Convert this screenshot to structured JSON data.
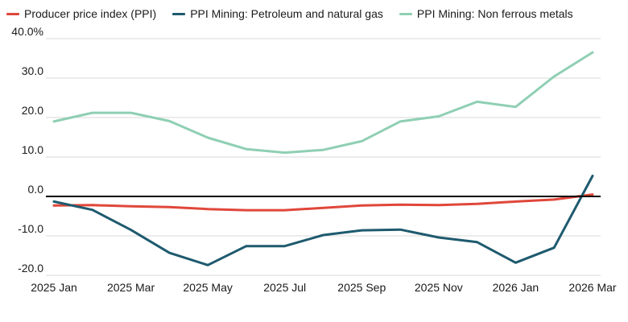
{
  "chart_data": {
    "type": "line",
    "title": "",
    "xlabel": "",
    "ylabel": "",
    "x": [
      "2025 Jan",
      "2025 Feb",
      "2025 Mar",
      "2025 Apr",
      "2025 May",
      "2025 Jun",
      "2025 Jul",
      "2025 Aug",
      "2025 Sep",
      "2025 Oct",
      "2025 Nov",
      "2025 Dec",
      "2026 Jan",
      "2026 Feb",
      "2026 Mar"
    ],
    "x_tick_labels": [
      "2025 Jan",
      "2025 Mar",
      "2025 May",
      "2025 Jul",
      "2025 Sep",
      "2025 Nov",
      "2026 Jan",
      "2026 Mar"
    ],
    "y_tick_labels": [
      "40.0%",
      "30.0",
      "20.0",
      "10.0",
      "0.0",
      "-10.0",
      "-20.0"
    ],
    "ylim": [
      -20,
      40
    ],
    "y_ticks": [
      40,
      30,
      20,
      10,
      0,
      -10,
      -20
    ],
    "grid": "horizontal",
    "legend_position": "top-left",
    "zero_line": true,
    "series": [
      {
        "name": "Producer price index (PPI)",
        "color": "#e0473a",
        "values": [
          -2.3,
          -2.2,
          -2.5,
          -2.7,
          -3.2,
          -3.5,
          -3.5,
          -2.9,
          -2.3,
          -2.1,
          -2.2,
          -1.9,
          -1.3,
          -0.8,
          0.5
        ]
      },
      {
        "name": "PPI Mining: Petroleum and natural gas",
        "color": "#1e5a6e",
        "values": [
          -1.3,
          -3.4,
          -8.5,
          -14.3,
          -17.4,
          -12.6,
          -12.6,
          -9.8,
          -8.6,
          -8.4,
          -10.4,
          -11.6,
          -16.8,
          -13.0,
          5.2
        ]
      },
      {
        "name": "PPI Mining: Non ferrous metals",
        "color": "#8fcfb3",
        "values": [
          19.0,
          21.2,
          21.2,
          19.1,
          14.9,
          12.0,
          11.1,
          11.8,
          14.0,
          19.0,
          20.3,
          24.0,
          22.7,
          30.4,
          36.5
        ]
      }
    ]
  }
}
